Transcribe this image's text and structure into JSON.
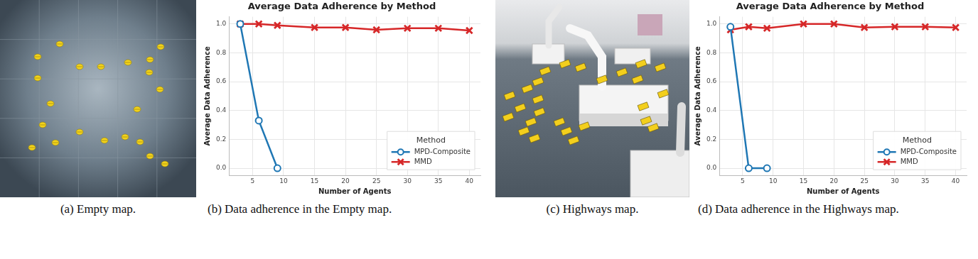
{
  "images": [
    {
      "caption": "(a) Empty map."
    },
    {
      "caption": "(c) Highways map."
    }
  ],
  "chart_data": [
    {
      "type": "line",
      "title": "Average Data Adherence by Method",
      "caption": "(b) Data adherence in the Empty map.",
      "x_label": "Number of Agents",
      "y_label": "Average Data Adherence",
      "x": [
        3,
        6,
        9,
        15,
        20,
        25,
        30,
        35,
        40
      ],
      "series": [
        {
          "name": "MPD-Composite",
          "color": "#1f77b4",
          "marker": "circle",
          "values": [
            1.0,
            0.33,
            0.0,
            null,
            null,
            null,
            null,
            null,
            null
          ]
        },
        {
          "name": "MMD",
          "color": "#d62728",
          "marker": "x",
          "values": [
            1.0,
            1.0,
            0.99,
            0.975,
            0.975,
            0.96,
            0.97,
            0.97,
            0.955
          ]
        }
      ],
      "xlim": [
        1.2,
        41.8
      ],
      "xticks": [
        5,
        10,
        15,
        20,
        25,
        30,
        35,
        40
      ],
      "ylim": [
        -0.05,
        1.05
      ],
      "yticks": [
        {
          "value": 0,
          "label": "0.0"
        },
        {
          "value": 0.2,
          "label": "0.2"
        },
        {
          "value": 0.4,
          "label": "0.4"
        },
        {
          "value": 0.6,
          "label": "0.6"
        },
        {
          "value": 0.8,
          "label": "0.8"
        },
        {
          "value": 1,
          "label": "1.0"
        }
      ],
      "grid": true,
      "legend": "lower right",
      "legend_title": "Method"
    },
    {
      "type": "line",
      "title": "Average Data Adherence by Method",
      "caption": "(d) Data adherence in the Highways map.",
      "x_label": "Number of Agents",
      "y_label": "Average Data Adherence",
      "x": [
        3,
        6,
        9,
        15,
        20,
        25,
        30,
        35,
        40
      ],
      "series": [
        {
          "name": "MPD-Composite",
          "color": "#1f77b4",
          "marker": "circle",
          "values": [
            0.98,
            0.0,
            0.0,
            null,
            null,
            null,
            null,
            null,
            null
          ]
        },
        {
          "name": "MMD",
          "color": "#d62728",
          "marker": "x",
          "values": [
            0.96,
            0.98,
            0.97,
            1.0,
            1.0,
            0.975,
            0.98,
            0.98,
            0.975
          ]
        }
      ],
      "xlim": [
        1.2,
        41.8
      ],
      "xticks": [
        5,
        10,
        15,
        20,
        25,
        30,
        35,
        40
      ],
      "ylim": [
        -0.05,
        1.05
      ],
      "yticks": [
        {
          "value": 0,
          "label": "0.0"
        },
        {
          "value": 0.2,
          "label": "0.2"
        },
        {
          "value": 0.4,
          "label": "0.4"
        },
        {
          "value": 0.6,
          "label": "0.6"
        },
        {
          "value": 0.8,
          "label": "0.8"
        },
        {
          "value": 1,
          "label": "1.0"
        }
      ],
      "grid": true,
      "legend": "lower right",
      "legend_title": "Method"
    }
  ]
}
